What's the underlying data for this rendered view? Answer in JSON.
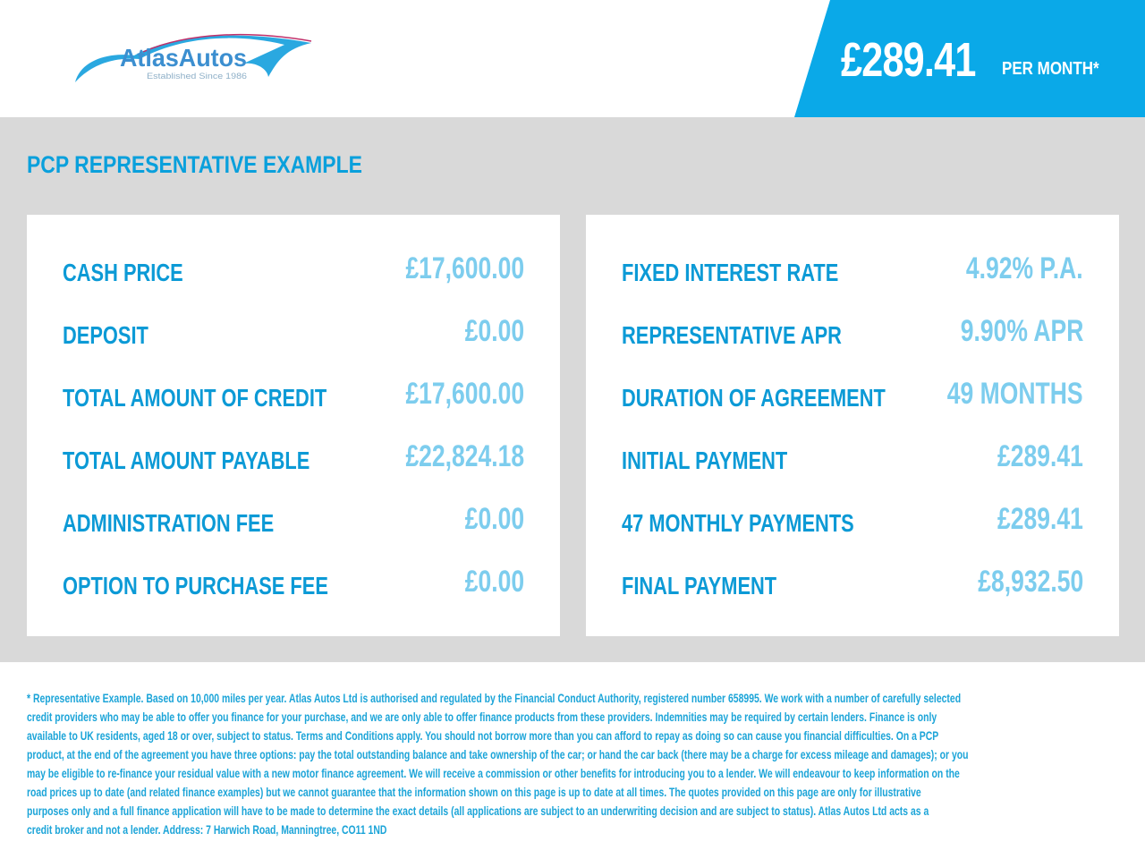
{
  "header": {
    "logo_text": "AtlasAutos",
    "logo_tagline": "Established Since 1986",
    "monthly_price": "£289.41",
    "per_month_label": "PER MONTH*"
  },
  "section_title": "PCP REPRESENTATIVE EXAMPLE",
  "left_panel": [
    {
      "label": "CASH PRICE",
      "value": "£17,600.00"
    },
    {
      "label": "DEPOSIT",
      "value": "£0.00"
    },
    {
      "label": "TOTAL AMOUNT OF CREDIT",
      "value": "£17,600.00"
    },
    {
      "label": "TOTAL AMOUNT PAYABLE",
      "value": "£22,824.18"
    },
    {
      "label": "ADMINISTRATION FEE",
      "value": "£0.00"
    },
    {
      "label": "OPTION TO PURCHASE FEE",
      "value": "£0.00"
    }
  ],
  "right_panel": [
    {
      "label": "FIXED INTEREST RATE",
      "value": "4.92% P.A."
    },
    {
      "label": "REPRESENTATIVE APR",
      "value": "9.90% APR"
    },
    {
      "label": "DURATION OF AGREEMENT",
      "value": "49 MONTHS"
    },
    {
      "label": "INITIAL PAYMENT",
      "value": "£289.41"
    },
    {
      "label": "47 MONTHLY PAYMENTS",
      "value": "£289.41"
    },
    {
      "label": "FINAL PAYMENT",
      "value": "£8,932.50"
    }
  ],
  "footer_lines": [
    "* Representative Example. Based on 10,000 miles per year. Atlas Autos Ltd is authorised and regulated by the Financial Conduct Authority, registered number 658995. We work with a number of carefully selected",
    "credit providers who may be able to offer you finance for your purchase, and we are only able to offer finance products from these providers. Indemnities may be required by certain lenders. Finance is only",
    "available to UK residents, aged 18 or over, subject to status. Terms and Conditions apply. You should not borrow more than you can afford to repay as doing so can cause you financial difficulties. On a PCP",
    "product, at the end of the agreement you have three options: pay the total outstanding balance and take ownership of the car; or hand the car back (there may be a charge for excess mileage and damages); or you",
    "may be eligible to re-finance your residual value with a new motor finance agreement. We will receive a commission or other benefits for introducing you to a lender. We will endeavour to keep information on the",
    "road prices up to date (and related finance examples) but we cannot guarantee that the information shown on this page is up to date at all times. The quotes provided on this page are only for illustrative",
    "purposes only and a full finance application will have to be made to determine the exact details (all applications are subject to an underwriting decision and are subject to status). Atlas Autos Ltd acts as a",
    "credit broker and not a lender. Address: 7 Harwich Road, Manningtree, CO11 1ND"
  ],
  "colors": {
    "brand": "#0aa9e8",
    "label": "#0c9ad6",
    "value": "#7dcdee",
    "background": "#d9d9d9"
  }
}
